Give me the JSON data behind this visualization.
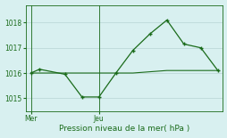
{
  "line1_x": [
    0,
    0.5,
    2,
    3,
    4,
    5,
    6,
    7,
    8,
    9,
    10,
    11
  ],
  "line1_y": [
    1016.0,
    1016.15,
    1015.95,
    1015.05,
    1015.05,
    1016.0,
    1016.9,
    1017.55,
    1018.1,
    1017.15,
    1017.0,
    1016.1
  ],
  "line2_x": [
    0,
    0.5,
    2,
    3,
    4,
    5,
    6,
    7,
    8,
    9,
    10,
    11
  ],
  "line2_y": [
    1016.0,
    1016.0,
    1016.0,
    1016.0,
    1016.0,
    1016.0,
    1016.0,
    1016.05,
    1016.1,
    1016.1,
    1016.1,
    1016.1
  ],
  "mer_x": 0,
  "jeu_x": 4,
  "yticks": [
    1015,
    1016,
    1017,
    1018
  ],
  "xtick_positions": [
    0,
    4
  ],
  "xtick_labels": [
    "Mer",
    "Jeu"
  ],
  "xlabel": "Pression niveau de la mer( hPa )",
  "line_color": "#1a6b1a",
  "bg_color": "#d8f0f0",
  "grid_color": "#b8d4d4",
  "ylim": [
    1014.5,
    1018.7
  ],
  "xlim": [
    -0.3,
    11.3
  ]
}
